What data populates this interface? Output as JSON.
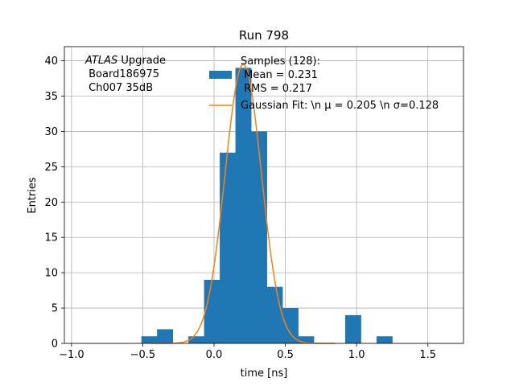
{
  "chart_data": {
    "type": "bar",
    "title": "Run 798",
    "xlabel": "time [ns]",
    "ylabel": "Entries",
    "xlim": [
      -1.05,
      1.75
    ],
    "ylim": [
      0,
      42
    ],
    "xticks": [
      -1.0,
      -0.5,
      0.0,
      0.5,
      1.0,
      1.5
    ],
    "xtick_labels": [
      "−1.0",
      "−0.5",
      "0.0",
      "0.5",
      "1.0",
      "1.5"
    ],
    "yticks": [
      0,
      5,
      10,
      15,
      20,
      25,
      30,
      35,
      40
    ],
    "ytick_labels": [
      "0",
      "5",
      "10",
      "15",
      "20",
      "25",
      "30",
      "35",
      "40"
    ],
    "grid": true,
    "histogram": {
      "bin_edges": [
        -0.51,
        -0.4,
        -0.29,
        -0.18,
        -0.07,
        0.04,
        0.15,
        0.26,
        0.37,
        0.48,
        0.59,
        0.7,
        0.81,
        0.92,
        1.03,
        1.14,
        1.25
      ],
      "counts": [
        1,
        2,
        0,
        1,
        9,
        27,
        39,
        30,
        8,
        5,
        1,
        0,
        0,
        4,
        0,
        1
      ],
      "color": "#1f77b4"
    },
    "fit": {
      "type": "gaussian",
      "mu": 0.205,
      "sigma": 0.128,
      "amplitude": 39.5,
      "color": "#ff7f0e"
    },
    "legend": {
      "placement": "upper center",
      "entries": [
        {
          "kind": "patch",
          "lines": [
            "Samples (128):",
            " Mean = 0.231",
            " RMS = 0.217"
          ]
        },
        {
          "kind": "line",
          "lines": [
            "Gaussian Fit: \\n μ = 0.205 \\n σ=0.128"
          ]
        }
      ]
    },
    "annotation": {
      "placement": "upper left",
      "lines": [
        "ATLAS Upgrade",
        " Board186975",
        " Ch007 35dB"
      ],
      "italic_word": "ATLAS",
      "rest_first_line": " Upgrade"
    }
  }
}
